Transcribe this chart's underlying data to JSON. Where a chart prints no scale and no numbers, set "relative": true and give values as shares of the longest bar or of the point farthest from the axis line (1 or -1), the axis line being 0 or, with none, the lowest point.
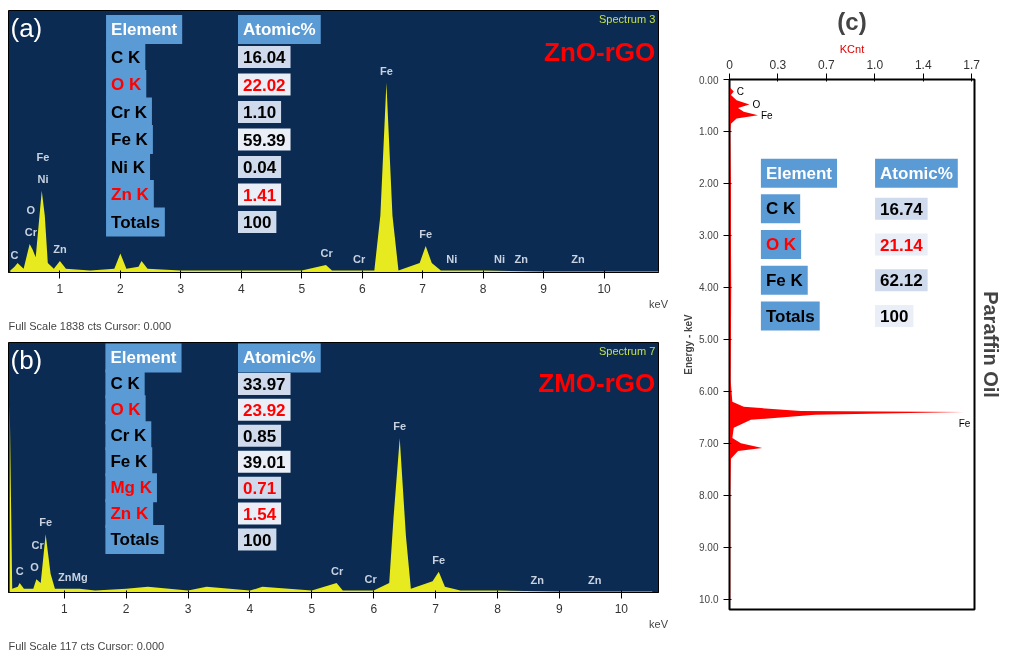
{
  "chart_data": [
    {
      "type": "area",
      "relative": true,
      "xlabel": "keV",
      "tick_labels": "x",
      "xlim": [
        0.15,
        10.9
      ],
      "xticks": [
        1,
        2,
        3,
        4,
        5,
        6,
        7,
        8,
        9,
        10
      ],
      "x": [
        0.18,
        0.25,
        0.3,
        0.4,
        0.5,
        0.55,
        0.6,
        0.7,
        0.75,
        0.8,
        0.9,
        1.0,
        1.1,
        1.5,
        1.9,
        2.0,
        2.1,
        2.3,
        2.35,
        2.45,
        3,
        4,
        5,
        5.4,
        5.5,
        5.95,
        6.2,
        6.3,
        6.4,
        6.5,
        6.6,
        6.95,
        7.05,
        7.15,
        7.3,
        8,
        9,
        10,
        10.9
      ],
      "series": [
        {
          "color": "#e6ea1e",
          "values": [
            0.01,
            0.03,
            0.05,
            0.02,
            0.15,
            0.12,
            0.08,
            0.43,
            0.3,
            0.05,
            0.02,
            0.06,
            0.02,
            0.01,
            0.02,
            0.1,
            0.02,
            0.03,
            0.06,
            0.02,
            0.01,
            0.01,
            0.01,
            0.04,
            0.01,
            0.01,
            0.01,
            0.3,
            1,
            0.3,
            0.01,
            0.05,
            0.14,
            0.05,
            0.01,
            0.01,
            0.005,
            0.005,
            0.005
          ]
        }
      ],
      "annotations": [
        "(a)",
        "Spectrum 3",
        "ZnO-rGO",
        "Full Scale 1838 cts Cursor: 0.000",
        "Element",
        "Atomic%",
        "C K",
        "16.04",
        "O K",
        "22.02",
        "Cr K",
        "1.10",
        "Fe K",
        "59.39",
        "Ni K",
        "0.04",
        "Zn K",
        "1.41",
        "Totals",
        "100",
        {
          "text": "C",
          "x": 0.25,
          "y": 0.03
        },
        {
          "text": "Cr",
          "x": 0.52,
          "y": 0.15
        },
        {
          "text": "O",
          "x": 0.52,
          "y": 0.15
        },
        {
          "text": "Ni",
          "x": 0.72,
          "y": 0.43
        },
        {
          "text": "Fe",
          "x": 0.72,
          "y": 0.43
        },
        {
          "text": "Zn",
          "x": 1.0,
          "y": 0.06
        },
        {
          "text": "Cr",
          "x": 5.41,
          "y": 0.04
        },
        {
          "text": "Cr",
          "x": 5.95,
          "y": 0.01
        },
        {
          "text": "Fe",
          "x": 6.4,
          "y": 1
        },
        {
          "text": "Fe",
          "x": 7.05,
          "y": 0.14
        },
        {
          "text": "Ni",
          "x": 7.48,
          "y": 0.01
        },
        {
          "text": "Ni",
          "x": 8.27,
          "y": 0.01
        },
        {
          "text": "Zn",
          "x": 8.63,
          "y": 0.01
        },
        {
          "text": "Zn",
          "x": 9.57,
          "y": 0.01
        }
      ]
    },
    {
      "type": "area",
      "relative": true,
      "xlabel": "keV",
      "tick_labels": "x",
      "xlim": [
        0.1,
        10.6
      ],
      "xticks": [
        1,
        2,
        3,
        4,
        5,
        6,
        7,
        8,
        9,
        10
      ],
      "x": [
        0.12,
        0.16,
        0.25,
        0.28,
        0.35,
        0.5,
        0.55,
        0.62,
        0.7,
        0.78,
        0.85,
        1.0,
        1.25,
        1.5,
        2,
        2.35,
        3,
        3.3,
        4,
        4.2,
        5,
        5.4,
        5.5,
        6.0,
        6.25,
        6.32,
        6.42,
        6.52,
        6.6,
        6.95,
        7.05,
        7.15,
        7.4,
        8,
        9,
        10,
        10.5
      ],
      "series": [
        {
          "color": "#e6ea1e",
          "values": [
            1.0,
            0.02,
            0.03,
            0.05,
            0.02,
            0.02,
            0.07,
            0.05,
            0.31,
            0.1,
            0.02,
            0.02,
            0.02,
            0.01,
            0.02,
            0.03,
            0.01,
            0.03,
            0.01,
            0.03,
            0.01,
            0.05,
            0.01,
            0.01,
            0.05,
            0.4,
            0.82,
            0.3,
            0.02,
            0.06,
            0.11,
            0.03,
            0.01,
            0.01,
            0.005,
            0.005,
            0.005
          ]
        }
      ],
      "annotations": [
        "(b)",
        "Spectrum 7",
        "ZMO-rGO",
        "Full Scale 117 cts Cursor: 0.000",
        "Element",
        "Atomic%",
        "C K",
        "33.97",
        "O K",
        "23.92",
        "Cr K",
        "0.85",
        "Fe K",
        "39.01",
        "Mg K",
        "0.71",
        "Zn K",
        "1.54",
        "Totals",
        "100",
        {
          "text": "C",
          "x": 0.28,
          "y": 0.05
        },
        {
          "text": "O",
          "x": 0.52,
          "y": 0.07
        },
        {
          "text": "Cr",
          "x": 0.57,
          "y": 0.07
        },
        {
          "text": "Fe",
          "x": 0.7,
          "y": 0.31
        },
        {
          "text": "Zn",
          "x": 1.01,
          "y": 0.02
        },
        {
          "text": "Mg",
          "x": 1.25,
          "y": 0.02
        },
        {
          "text": "Cr",
          "x": 5.41,
          "y": 0.05
        },
        {
          "text": "Cr",
          "x": 5.95,
          "y": 0.01
        },
        {
          "text": "Fe",
          "x": 6.42,
          "y": 0.82
        },
        {
          "text": "Fe",
          "x": 7.05,
          "y": 0.11
        },
        {
          "text": "Zn",
          "x": 8.64,
          "y": 0.005
        },
        {
          "text": "Zn",
          "x": 9.57,
          "y": 0.005
        }
      ]
    },
    {
      "type": "area",
      "orientation": "horizontal",
      "xlabel": "KCnt",
      "ylabel": "Energy - keV",
      "xlim": [
        0,
        1.72
      ],
      "xticks": [
        0,
        {
          "value": 0.34,
          "label": "0.3"
        },
        {
          "value": 0.68,
          "label": "0.7"
        },
        {
          "value": 1.02,
          "label": "1.0"
        },
        {
          "value": 1.36,
          "label": "1.4"
        },
        1.7
      ],
      "ylim": [
        10.2,
        0
      ],
      "yticks": [
        {
          "value": 0,
          "label": "0.00"
        },
        {
          "value": 1,
          "label": "1.00"
        },
        {
          "value": 2,
          "label": "2.00"
        },
        {
          "value": 3,
          "label": "3.00"
        },
        {
          "value": 4,
          "label": "4.00"
        },
        {
          "value": 5,
          "label": "5.00"
        },
        {
          "value": 6,
          "label": "6.00"
        },
        {
          "value": 7,
          "label": "7.00"
        },
        {
          "value": 8,
          "label": "8.00"
        },
        {
          "value": 9,
          "label": "9.00"
        },
        {
          "value": 10,
          "label": "10.0"
        }
      ],
      "x": [
        0.15,
        0.23,
        0.3,
        0.4,
        0.48,
        0.55,
        0.62,
        0.69,
        0.75,
        0.85,
        1.0,
        2,
        3,
        4,
        5,
        5.8,
        6.2,
        6.3,
        6.38,
        6.4,
        6.45,
        6.55,
        6.7,
        6.9,
        7.0,
        7.09,
        7.15,
        7.3,
        8,
        9,
        10
      ],
      "series": [
        {
          "color": "#ff0000",
          "values": [
            0,
            0.03,
            0.01,
            0.05,
            0.14,
            0.06,
            0.1,
            0.2,
            0.05,
            0.01,
            0.005,
            0.01,
            0.01,
            0.012,
            0.01,
            0.008,
            0.02,
            0.1,
            0.5,
            1.65,
            0.6,
            0.15,
            0.03,
            0.02,
            0.08,
            0.23,
            0.06,
            0.01,
            0.005,
            0.005,
            0.005
          ]
        }
      ],
      "annotations": [
        "(c)",
        "Paraffin Oil",
        "Element",
        "Atomic%",
        "C K",
        "16.74",
        "O K",
        "21.14",
        "Fe K",
        "62.12",
        "Totals",
        "100",
        {
          "text": "C",
          "x": 0.03,
          "y": 0.23
        },
        {
          "text": "O",
          "x": 0.14,
          "y": 0.48
        },
        {
          "text": "Fe",
          "x": 0.2,
          "y": 0.69
        },
        {
          "text": "Fe",
          "x": 1.65,
          "y": 6.4
        }
      ]
    }
  ]
}
